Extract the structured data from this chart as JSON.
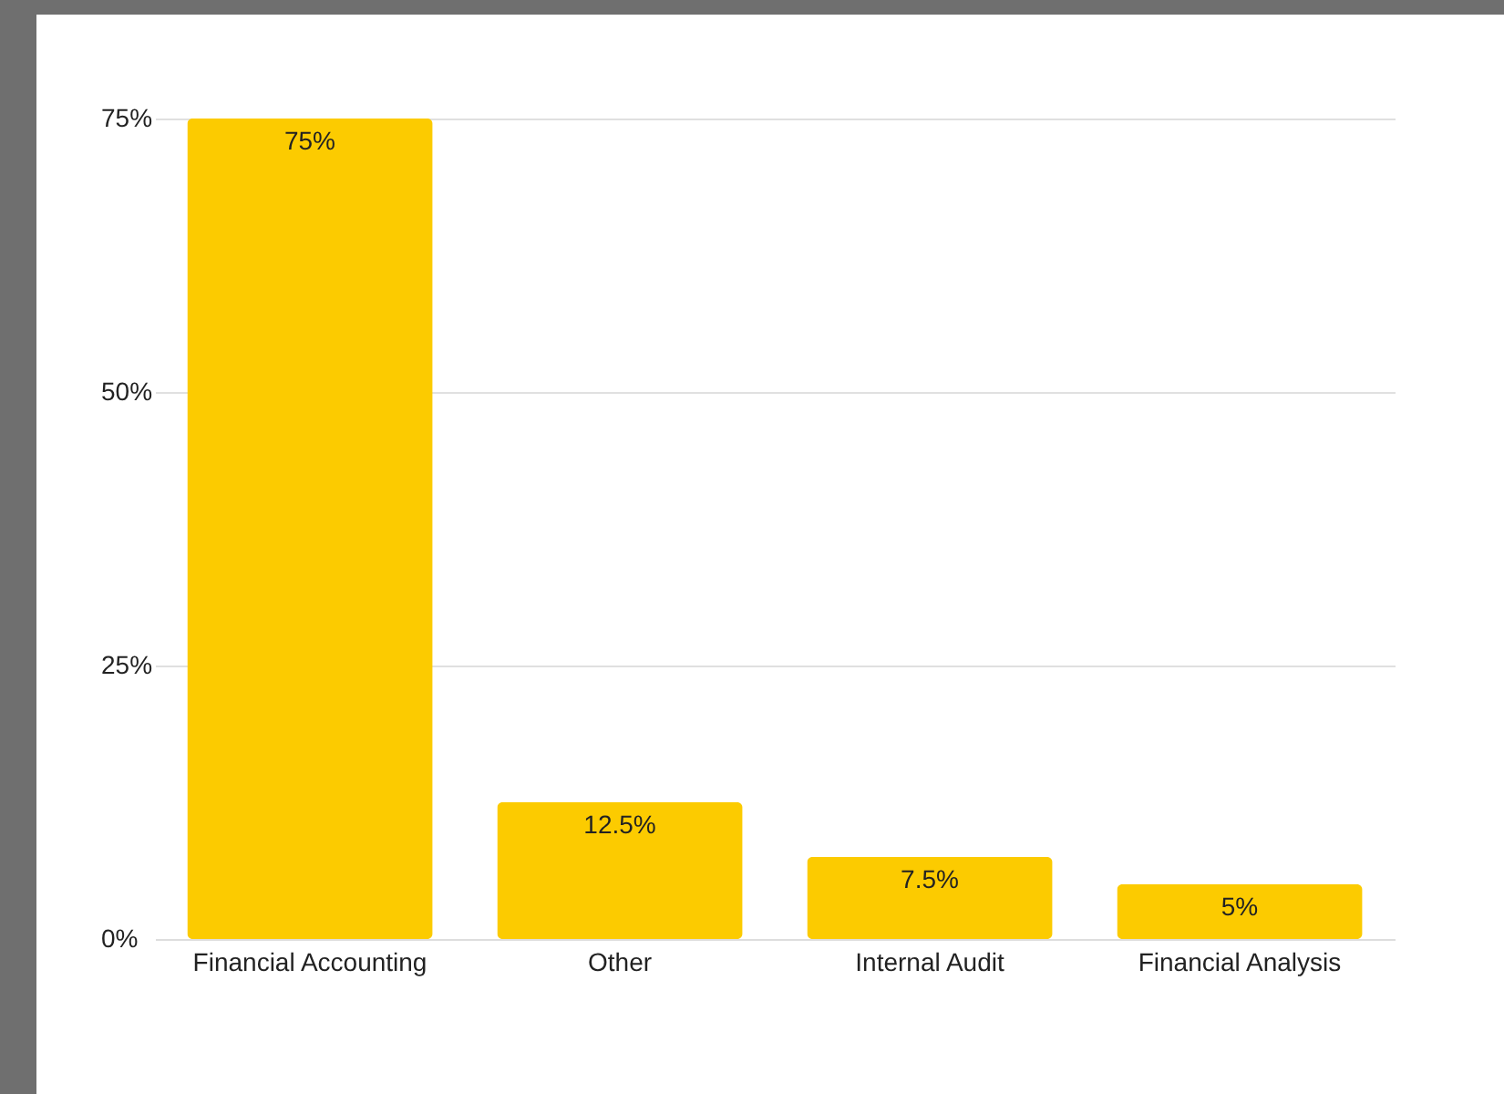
{
  "chart_data": {
    "type": "bar",
    "categories": [
      "Financial Accounting",
      "Other",
      "Internal Audit",
      "Financial Analysis"
    ],
    "values": [
      75,
      12.5,
      7.5,
      5
    ],
    "color": "#fccb00",
    "value_labels": [
      "75%",
      "12.5%",
      "7.5%",
      "5%"
    ],
    "ylim": [
      0,
      75
    ],
    "yticks": [
      {
        "value": 0,
        "label": "0%"
      },
      {
        "value": 25,
        "label": "25%"
      },
      {
        "value": 50,
        "label": "50%"
      },
      {
        "value": 75,
        "label": "75%"
      }
    ],
    "grid": "y"
  }
}
